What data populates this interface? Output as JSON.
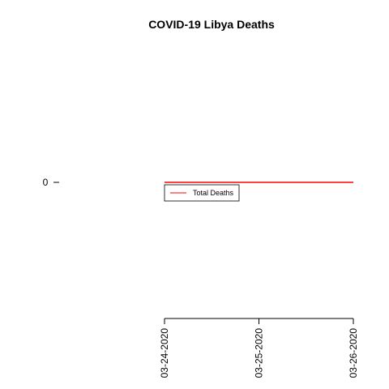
{
  "chart_data": {
    "type": "line",
    "title": "COVID-19 Libya Deaths",
    "xlabel": "",
    "ylabel": "",
    "x": [
      "03-24-2020",
      "03-25-2020",
      "03-26-2020"
    ],
    "series": [
      {
        "name": "Total Deaths",
        "values": [
          0,
          0,
          0
        ],
        "color": "#ff0000"
      }
    ],
    "yticks": [
      0
    ],
    "ylim": [
      -1,
      1
    ],
    "grid": false,
    "legend": {
      "placement": "top-left"
    }
  }
}
